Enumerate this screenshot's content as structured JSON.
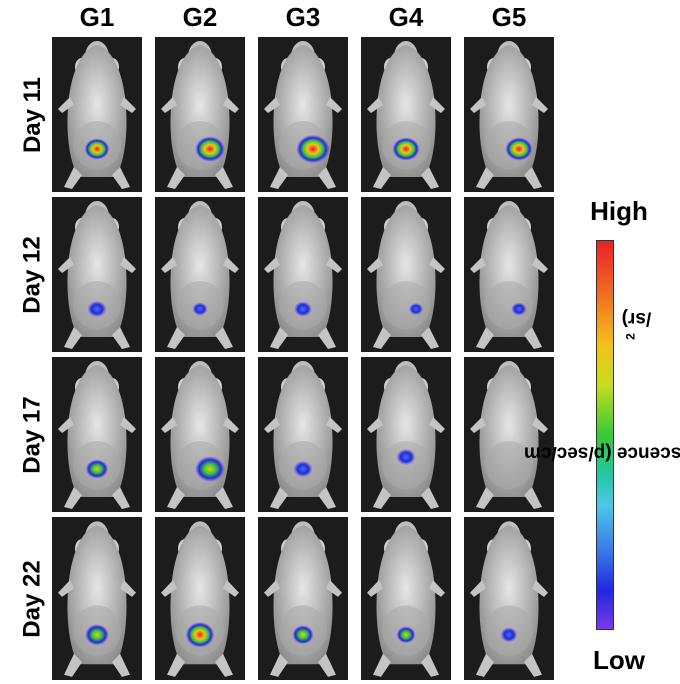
{
  "columns": [
    "G1",
    "G2",
    "G3",
    "G4",
    "G5"
  ],
  "rows": [
    "Day 11",
    "Day 12",
    "Day 17",
    "Day 22"
  ],
  "scale": {
    "high": "High",
    "low": "Low",
    "title_main": "Luminescence (p/sec/cm",
    "title_sup": "2",
    "title_end": "/sr)"
  },
  "signals": [
    [
      {
        "level": 0.85,
        "size": 0.6,
        "pos": "lower-center"
      },
      {
        "level": 0.9,
        "size": 0.8,
        "pos": "lower-right"
      },
      {
        "level": 1.0,
        "size": 0.95,
        "pos": "lower-right"
      },
      {
        "level": 0.85,
        "size": 0.7,
        "pos": "lower-center"
      },
      {
        "level": 0.95,
        "size": 0.7,
        "pos": "lower-right"
      }
    ],
    [
      {
        "level": 0.2,
        "size": 0.35,
        "pos": "lower-center"
      },
      {
        "level": 0.15,
        "size": 0.2,
        "pos": "lower-center"
      },
      {
        "level": 0.3,
        "size": 0.3,
        "pos": "lower-center"
      },
      {
        "level": 0.1,
        "size": 0.15,
        "pos": "lower-right"
      },
      {
        "level": 0.15,
        "size": 0.2,
        "pos": "lower-right"
      }
    ],
    [
      {
        "level": 0.5,
        "size": 0.5,
        "pos": "lower-center"
      },
      {
        "level": 0.6,
        "size": 0.8,
        "pos": "lower-right"
      },
      {
        "level": 0.4,
        "size": 0.35,
        "pos": "lower-center"
      },
      {
        "level": 0.3,
        "size": 0.35,
        "pos": "center"
      },
      {
        "level": 0.0,
        "size": 0.0,
        "pos": "none"
      }
    ],
    [
      {
        "level": 0.7,
        "size": 0.55,
        "pos": "lower-center"
      },
      {
        "level": 0.8,
        "size": 0.75,
        "pos": "lower-center"
      },
      {
        "level": 0.5,
        "size": 0.45,
        "pos": "lower-center"
      },
      {
        "level": 0.45,
        "size": 0.35,
        "pos": "lower-center"
      },
      {
        "level": 0.2,
        "size": 0.25,
        "pos": "lower-center"
      }
    ]
  ]
}
